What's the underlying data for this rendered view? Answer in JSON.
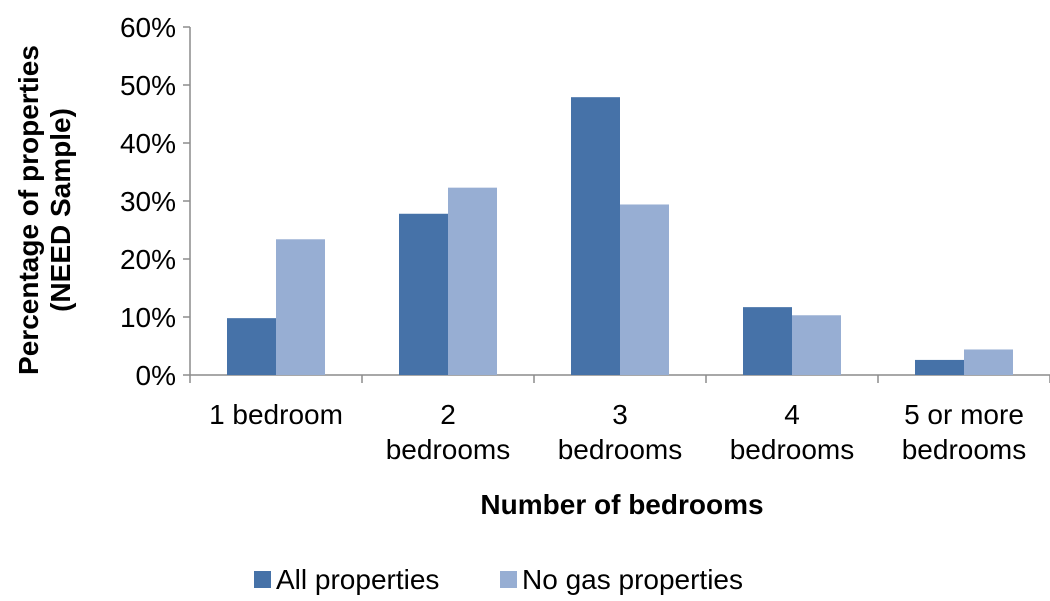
{
  "chart_data": {
    "type": "bar",
    "xlabel": "Number of bedrooms",
    "ylabel": "Percentage of properties (NEED Sample)",
    "ylabel_lines": [
      "Percentage of properties",
      "(NEED Sample)"
    ],
    "ylim": [
      0,
      60
    ],
    "y_ticks": [
      0,
      10,
      20,
      30,
      40,
      50,
      60
    ],
    "y_tick_labels": [
      "0%",
      "10%",
      "20%",
      "30%",
      "40%",
      "50%",
      "60%"
    ],
    "categories": [
      "1 bedroom",
      "2 bedrooms",
      "3 bedrooms",
      "4 bedrooms",
      "5 or more bedrooms"
    ],
    "category_label_lines": [
      [
        "1 bedroom"
      ],
      [
        "2",
        "bedrooms"
      ],
      [
        "3",
        "bedrooms"
      ],
      [
        "4",
        "bedrooms"
      ],
      [
        "5 or more",
        "bedrooms"
      ]
    ],
    "series": [
      {
        "name": "All properties",
        "color": "#4672A8",
        "values": [
          9.8,
          27.8,
          47.9,
          11.7,
          2.6
        ]
      },
      {
        "name": "No gas properties",
        "color": "#97AED3",
        "values": [
          23.4,
          32.3,
          29.4,
          10.3,
          4.4
        ]
      }
    ],
    "grid": false,
    "legend_position": "bottom"
  }
}
